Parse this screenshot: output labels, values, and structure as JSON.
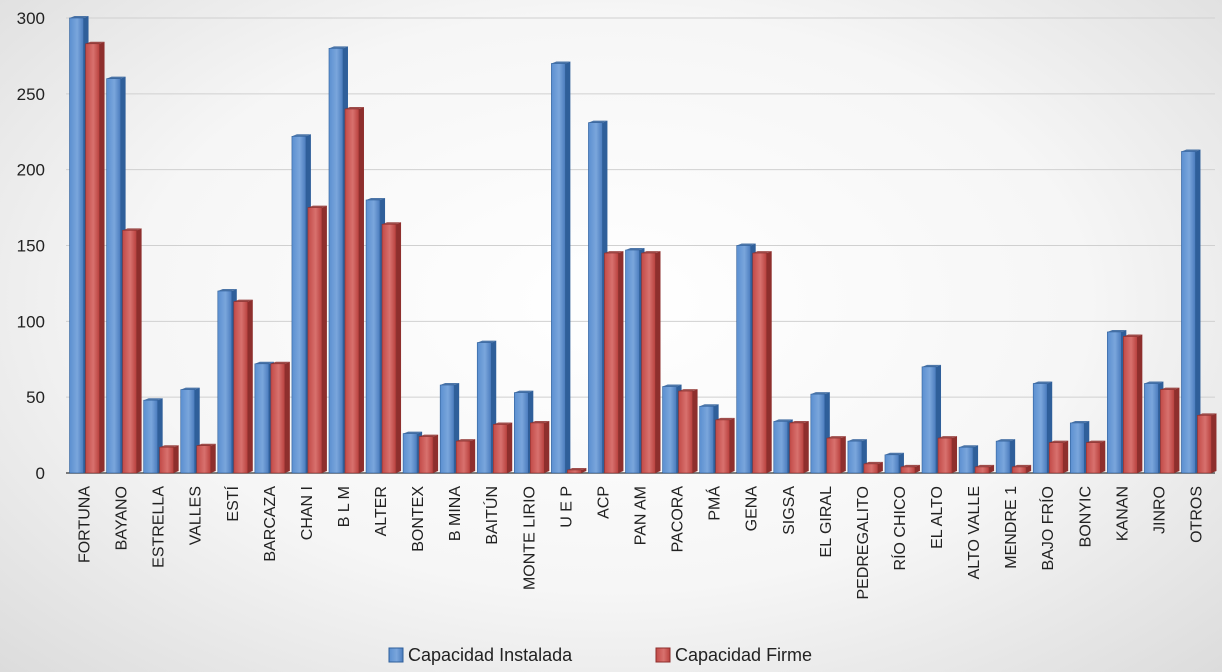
{
  "chart_data": {
    "type": "bar",
    "categories": [
      "FORTUNA",
      "BAYANO",
      "ESTRELLA",
      "VALLES",
      "ESTÍ",
      "BARCAZA",
      "CHAN I",
      "B L M",
      "ALTER",
      "BONTEX",
      "B MINA",
      "BAITÚN",
      "MONTE LIRIO",
      "U E P",
      "ACP",
      "PAN AM",
      "PACORA",
      "PMÁ",
      "GENA",
      "SIGSA",
      "EL GIRAL",
      "PEDREGALITO",
      "RÍO CHICO",
      "EL ALTO",
      "ALTO VALLE",
      "MENDRE 1",
      "BAJO FRÍO",
      "BONYIC",
      "KANAN",
      "JINRO",
      "OTROS"
    ],
    "series": [
      {
        "name": "Capacidad    Instalada",
        "color": "#4F81BD",
        "values": [
          300,
          260,
          48,
          55,
          120,
          72,
          222,
          280,
          180,
          26,
          58,
          86,
          53,
          270,
          231,
          147,
          57,
          44,
          150,
          34,
          52,
          21,
          12,
          70,
          17,
          21,
          59,
          33,
          93,
          59,
          212
        ]
      },
      {
        "name": "Capacidad Firme",
        "color": "#C0504D",
        "values": [
          283,
          160,
          17,
          18,
          113,
          72,
          175,
          240,
          164,
          24,
          21,
          32,
          33,
          2,
          145,
          145,
          54,
          35,
          145,
          33,
          23,
          6,
          4,
          23,
          4,
          4,
          20,
          20,
          90,
          55,
          38
        ]
      }
    ],
    "ylim": [
      0,
      300
    ],
    "yticks": [
      0,
      50,
      100,
      150,
      200,
      250,
      300
    ],
    "grid": true,
    "legend_position": "bottom",
    "xlabel": "",
    "ylabel": "",
    "title": ""
  }
}
